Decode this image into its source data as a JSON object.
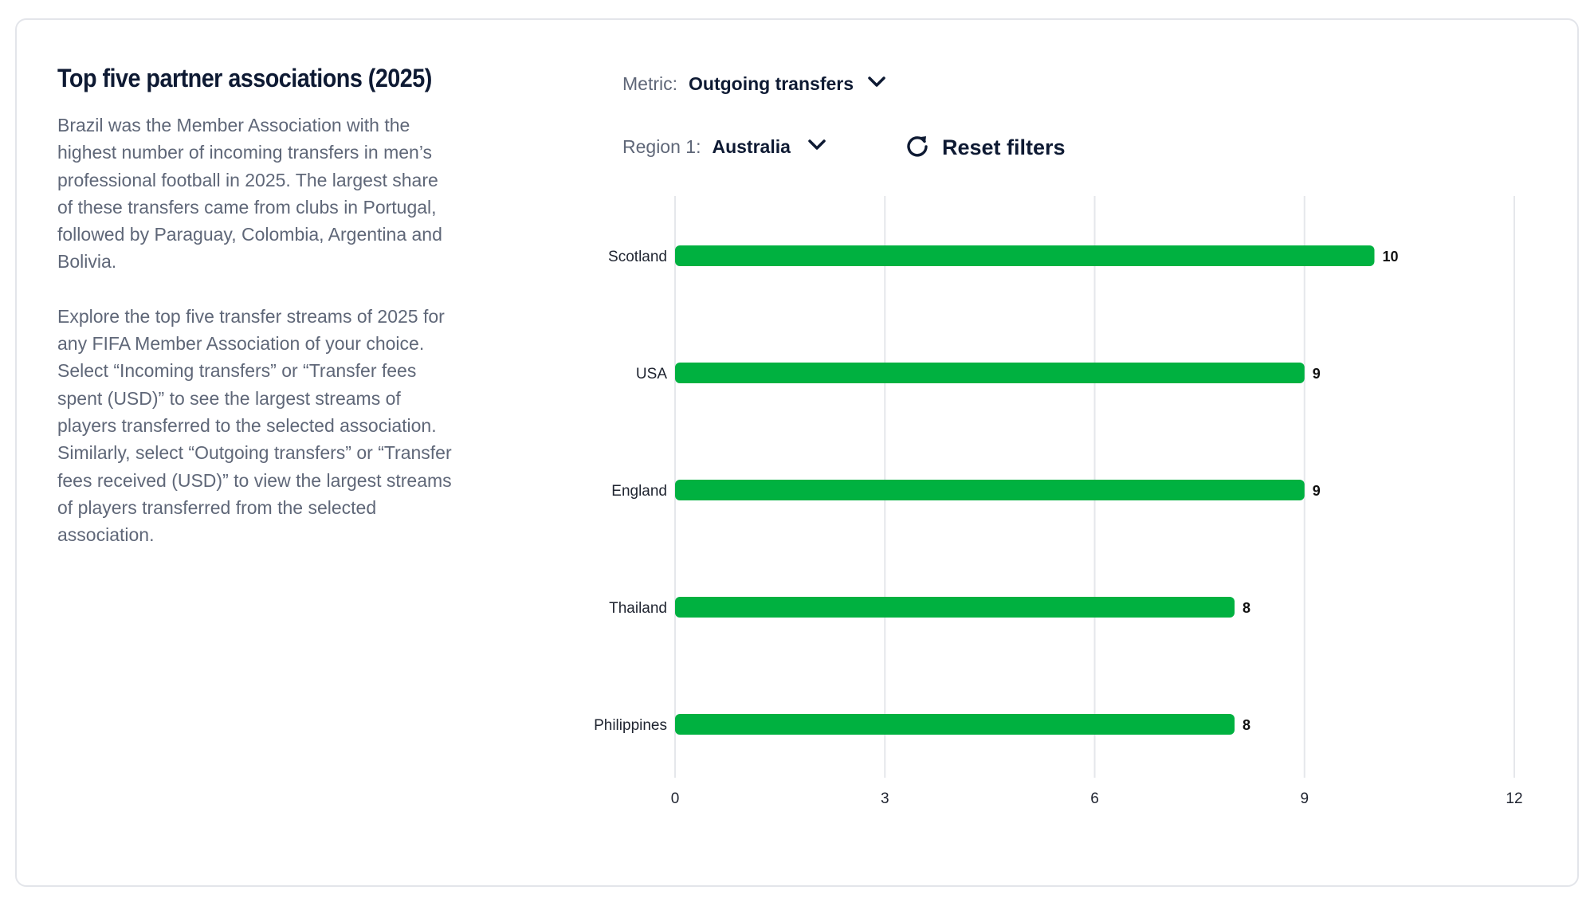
{
  "panel": {
    "title": "Top five partner associations (2025)",
    "paragraph_1": "Brazil was the Member Association with the highest number of incoming transfers in men’s professional football in 2025. The largest share of these transfers came from clubs in Portugal, followed by Paraguay, Colombia, Argentina and Bolivia.",
    "paragraph_2": "Explore the top five transfer streams of 2025 for any FIFA Member Association of your choice. Select “Incoming transfers” or “Transfer fees spent (USD)” to see the largest streams of players transferred to the selected association. Similarly, select “Outgoing transfers” or “Transfer fees received (USD)” to view the largest streams of players transferred from the selected association."
  },
  "filters": {
    "metric_label": "Metric:",
    "metric_value": "Outgoing transfers",
    "region_label": "Region 1:",
    "region_value": "Australia",
    "reset_label": "Reset filters",
    "chevron_icon": "chevron-down-icon",
    "reset_icon": "refresh-icon"
  },
  "chart_data": {
    "type": "bar",
    "orientation": "horizontal",
    "categories": [
      "Scotland",
      "USA",
      "England",
      "Thailand",
      "Philippines"
    ],
    "values": [
      10,
      9,
      9,
      8,
      8
    ],
    "xlim": [
      0,
      12
    ],
    "xticks": [
      0,
      3,
      6,
      9,
      12
    ],
    "grid": "vertical",
    "bar_color": "#00b140",
    "data_labels": true
  }
}
